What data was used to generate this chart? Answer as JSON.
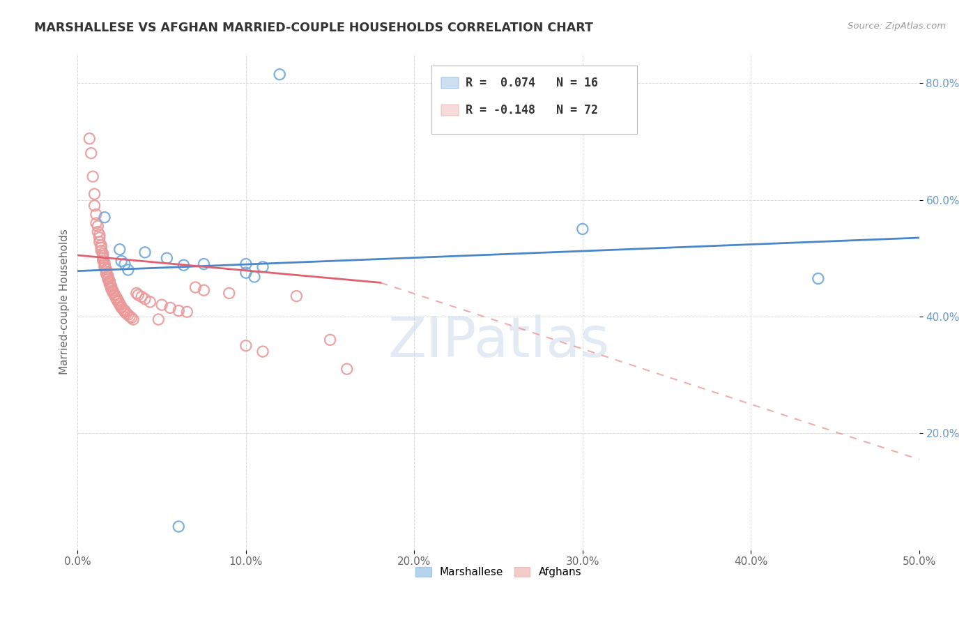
{
  "title": "MARSHALLESE VS AFGHAN MARRIED-COUPLE HOUSEHOLDS CORRELATION CHART",
  "source": "Source: ZipAtlas.com",
  "xlabel_ticks": [
    "0.0%",
    "10.0%",
    "20.0%",
    "30.0%",
    "40.0%",
    "50.0%"
  ],
  "xlabel_vals": [
    0.0,
    0.1,
    0.2,
    0.3,
    0.4,
    0.5
  ],
  "ylabel": "Married-couple Households",
  "ylabel_ticks": [
    "20.0%",
    "40.0%",
    "60.0%",
    "80.0%"
  ],
  "ylabel_vals": [
    0.2,
    0.4,
    0.6,
    0.8
  ],
  "xlim": [
    0.0,
    0.5
  ],
  "ylim": [
    0.0,
    0.85
  ],
  "watermark": "ZIPatlas",
  "legend_blue_label": "Marshallese",
  "legend_pink_label": "Afghans",
  "blue_R": "0.074",
  "blue_N": "16",
  "pink_R": "-0.148",
  "pink_N": "72",
  "blue_color": "#6fa8dc",
  "pink_color": "#ea9999",
  "blue_line_color": "#4a86c8",
  "pink_line_color": "#e06070",
  "blue_line": [
    0.0,
    0.478,
    0.5,
    0.535
  ],
  "pink_line_solid": [
    0.0,
    0.505,
    0.18,
    0.458
  ],
  "pink_line_dashed": [
    0.18,
    0.458,
    0.5,
    0.155
  ],
  "blue_scatter": [
    [
      0.016,
      0.57
    ],
    [
      0.025,
      0.515
    ],
    [
      0.026,
      0.495
    ],
    [
      0.028,
      0.49
    ],
    [
      0.03,
      0.48
    ],
    [
      0.04,
      0.51
    ],
    [
      0.053,
      0.5
    ],
    [
      0.063,
      0.488
    ],
    [
      0.075,
      0.49
    ],
    [
      0.1,
      0.475
    ],
    [
      0.1,
      0.49
    ],
    [
      0.105,
      0.468
    ],
    [
      0.11,
      0.485
    ],
    [
      0.3,
      0.55
    ],
    [
      0.44,
      0.465
    ],
    [
      0.06,
      0.04
    ]
  ],
  "blue_scatter_top": [
    [
      0.12,
      0.815
    ]
  ],
  "pink_scatter": [
    [
      0.007,
      0.705
    ],
    [
      0.008,
      0.68
    ],
    [
      0.009,
      0.64
    ],
    [
      0.01,
      0.61
    ],
    [
      0.01,
      0.59
    ],
    [
      0.011,
      0.575
    ],
    [
      0.011,
      0.56
    ],
    [
      0.012,
      0.555
    ],
    [
      0.012,
      0.545
    ],
    [
      0.013,
      0.54
    ],
    [
      0.013,
      0.535
    ],
    [
      0.013,
      0.528
    ],
    [
      0.014,
      0.522
    ],
    [
      0.014,
      0.518
    ],
    [
      0.014,
      0.513
    ],
    [
      0.015,
      0.508
    ],
    [
      0.015,
      0.504
    ],
    [
      0.015,
      0.5
    ],
    [
      0.015,
      0.496
    ],
    [
      0.016,
      0.492
    ],
    [
      0.016,
      0.488
    ],
    [
      0.016,
      0.484
    ],
    [
      0.017,
      0.481
    ],
    [
      0.017,
      0.477
    ],
    [
      0.017,
      0.473
    ],
    [
      0.018,
      0.47
    ],
    [
      0.018,
      0.467
    ],
    [
      0.018,
      0.464
    ],
    [
      0.019,
      0.461
    ],
    [
      0.019,
      0.458
    ],
    [
      0.019,
      0.455
    ],
    [
      0.02,
      0.452
    ],
    [
      0.02,
      0.449
    ],
    [
      0.02,
      0.447
    ],
    [
      0.021,
      0.444
    ],
    [
      0.021,
      0.441
    ],
    [
      0.022,
      0.438
    ],
    [
      0.022,
      0.436
    ],
    [
      0.023,
      0.433
    ],
    [
      0.023,
      0.43
    ],
    [
      0.024,
      0.428
    ],
    [
      0.024,
      0.425
    ],
    [
      0.025,
      0.422
    ],
    [
      0.025,
      0.42
    ],
    [
      0.026,
      0.417
    ],
    [
      0.026,
      0.415
    ],
    [
      0.027,
      0.412
    ],
    [
      0.028,
      0.41
    ],
    [
      0.028,
      0.408
    ],
    [
      0.029,
      0.405
    ],
    [
      0.03,
      0.403
    ],
    [
      0.031,
      0.4
    ],
    [
      0.032,
      0.398
    ],
    [
      0.033,
      0.395
    ],
    [
      0.035,
      0.44
    ],
    [
      0.036,
      0.437
    ],
    [
      0.038,
      0.434
    ],
    [
      0.04,
      0.43
    ],
    [
      0.043,
      0.425
    ],
    [
      0.048,
      0.395
    ],
    [
      0.05,
      0.42
    ],
    [
      0.055,
      0.415
    ],
    [
      0.06,
      0.41
    ],
    [
      0.065,
      0.408
    ],
    [
      0.07,
      0.45
    ],
    [
      0.075,
      0.445
    ],
    [
      0.09,
      0.44
    ],
    [
      0.1,
      0.35
    ],
    [
      0.11,
      0.34
    ],
    [
      0.13,
      0.435
    ],
    [
      0.15,
      0.36
    ],
    [
      0.16,
      0.31
    ]
  ],
  "bg_color": "#ffffff",
  "grid_color": "#d0d0d0"
}
